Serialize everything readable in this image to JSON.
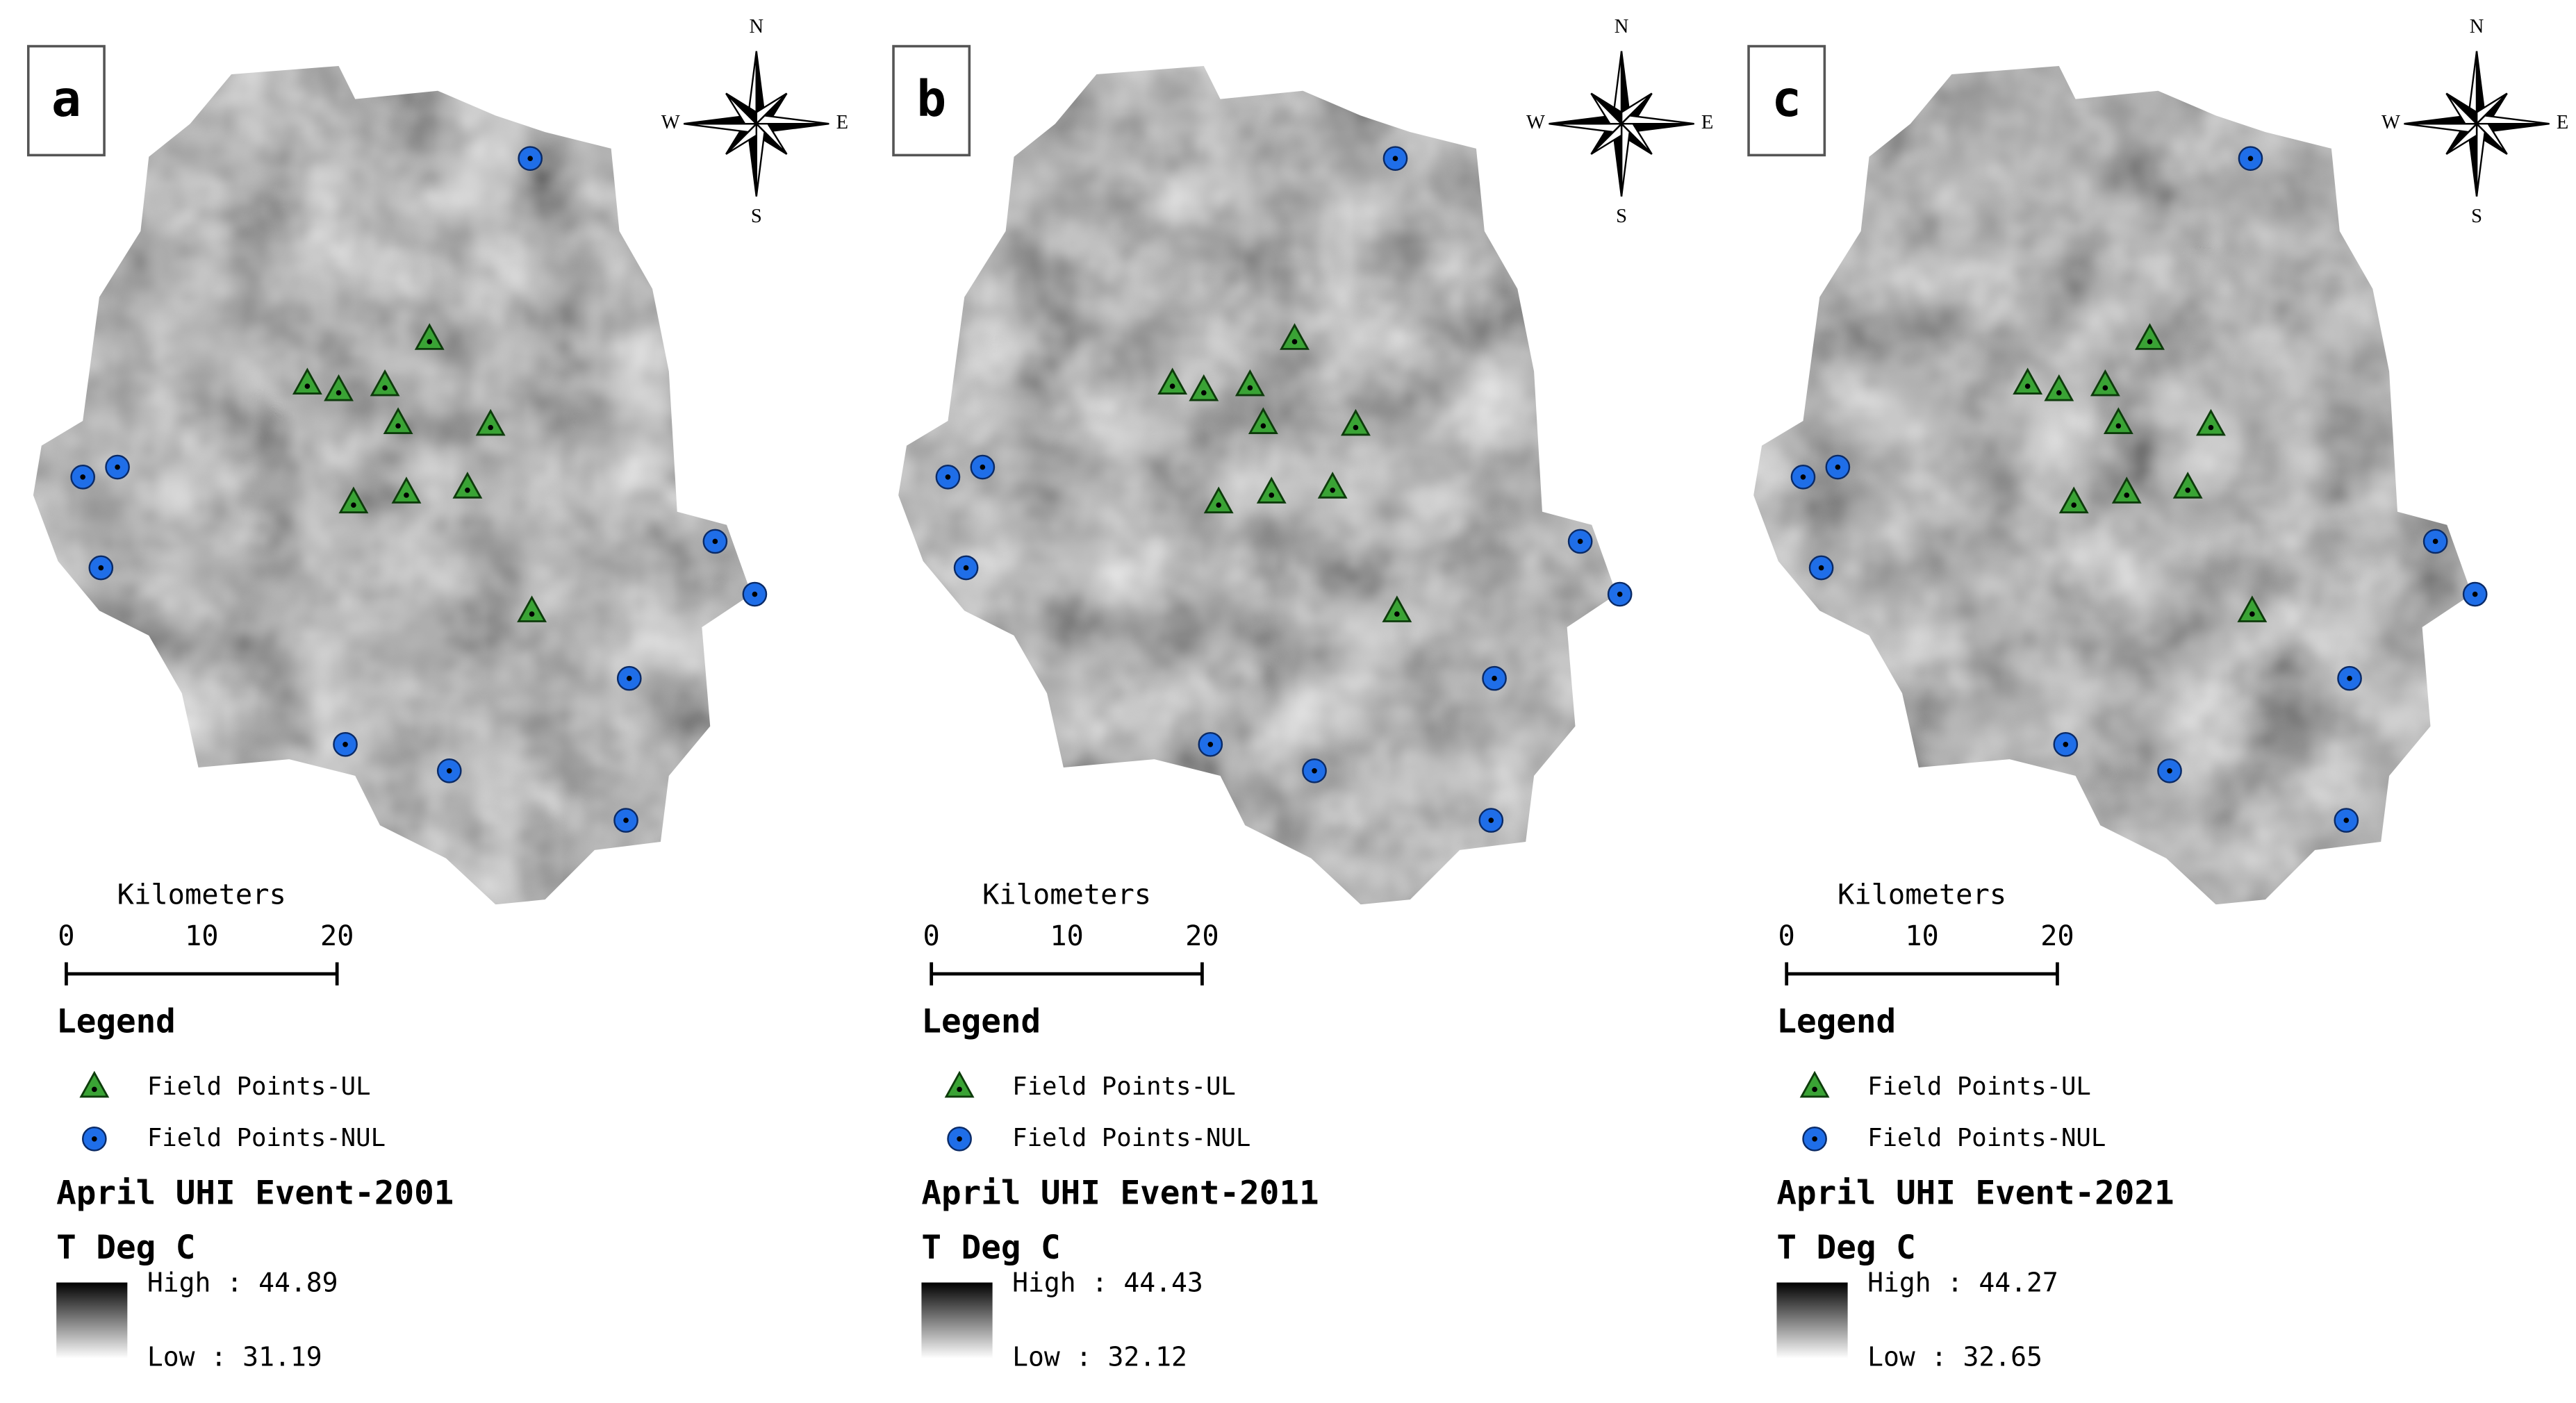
{
  "panels": [
    {
      "label": "a",
      "compass": {
        "n": "N",
        "s": "S",
        "e": "E",
        "w": "W"
      },
      "scale": {
        "title": "Kilometers",
        "ticks": [
          "0",
          "10",
          "20"
        ]
      },
      "legend": {
        "title": "Legend",
        "items": [
          "Field Points-UL",
          "Field Points-NUL"
        ]
      },
      "event": "April UHI Event-2001",
      "unit": "T Deg C",
      "high": "High : 44.89",
      "low": "Low : 31.19"
    },
    {
      "label": "b",
      "compass": {
        "n": "N",
        "s": "S",
        "e": "E",
        "w": "W"
      },
      "scale": {
        "title": "Kilometers",
        "ticks": [
          "0",
          "10",
          "20"
        ]
      },
      "legend": {
        "title": "Legend",
        "items": [
          "Field Points-UL",
          "Field Points-NUL"
        ]
      },
      "event": "April UHI Event-2011",
      "unit": "T Deg C",
      "high": "High : 44.43",
      "low": "Low : 32.12"
    },
    {
      "label": "c",
      "compass": {
        "n": "N",
        "s": "S",
        "e": "E",
        "w": "W"
      },
      "scale": {
        "title": "Kilometers",
        "ticks": [
          "0",
          "10",
          "20"
        ]
      },
      "legend": {
        "title": "Legend",
        "items": [
          "Field Points-UL",
          "Field Points-NUL"
        ]
      },
      "event": "April UHI Event-2021",
      "unit": "T Deg C",
      "high": "High : 44.27",
      "low": "Low : 32.65"
    }
  ]
}
